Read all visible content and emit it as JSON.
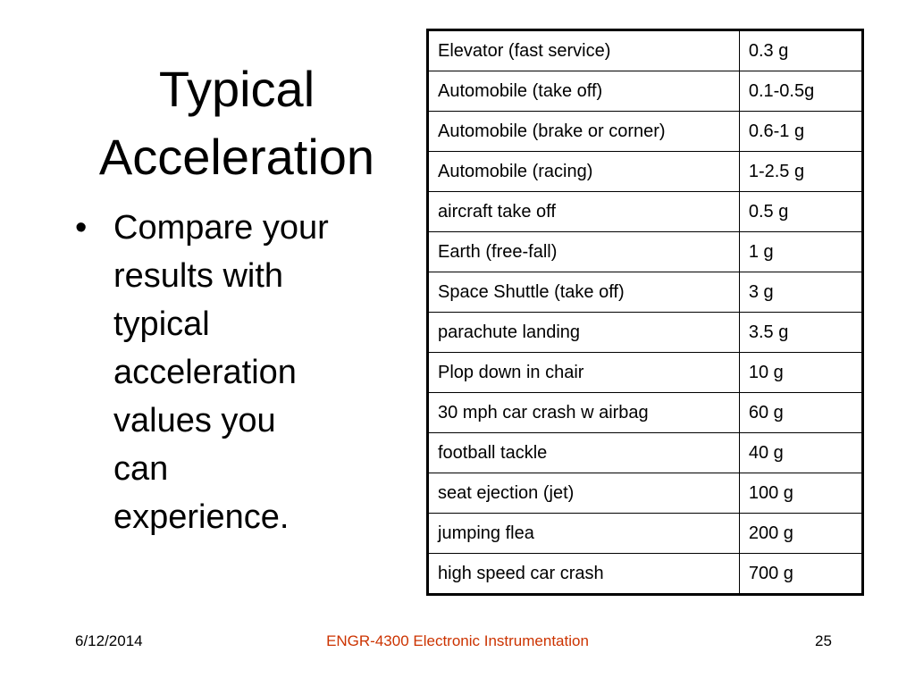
{
  "slide": {
    "title_lines": [
      "Typical",
      "Acceleration"
    ],
    "bullet_marker": "•",
    "bullet_text_lines": [
      "Compare your",
      "results with",
      "typical",
      "acceleration",
      "values you",
      "can",
      "experience."
    ],
    "table": {
      "rows": [
        {
          "source": "Elevator (fast service)",
          "value": "0.3 g"
        },
        {
          "source": "Automobile (take off)",
          "value": "0.1-0.5g"
        },
        {
          "source": "Automobile (brake or corner)",
          "value": "0.6-1 g"
        },
        {
          "source": "Automobile (racing)",
          "value": "1-2.5 g"
        },
        {
          "source": "aircraft take off",
          "value": "0.5 g"
        },
        {
          "source": "Earth (free-fall)",
          "value": "1 g"
        },
        {
          "source": "Space Shuttle (take off)",
          "value": "3 g"
        },
        {
          "source": "parachute landing",
          "value": "3.5 g"
        },
        {
          "source": "Plop down in chair",
          "value": "10 g"
        },
        {
          "source": "30 mph car crash w airbag",
          "value": "60 g"
        },
        {
          "source": "football tackle",
          "value": "40 g"
        },
        {
          "source": "seat ejection (jet)",
          "value": "100 g"
        },
        {
          "source": "jumping flea",
          "value": "200 g"
        },
        {
          "source": "high speed car crash",
          "value": "700 g"
        }
      ]
    },
    "footer": {
      "date": "6/12/2014",
      "course": "ENGR-4300  Electronic Instrumentation",
      "page_number": "25"
    },
    "colors": {
      "footer_course": "#cc3300"
    }
  }
}
